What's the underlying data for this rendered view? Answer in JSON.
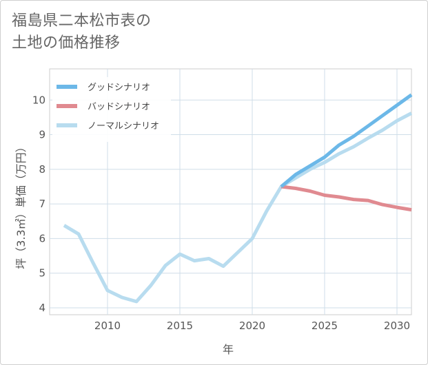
{
  "title": {
    "line1": "福島県二本松市表の",
    "line2": "土地の価格推移"
  },
  "chart_data": {
    "type": "line",
    "xlabel": "年",
    "ylabel": "坪（3.3㎡）単価（万円）",
    "xlim": [
      2006,
      2031
    ],
    "ylim": [
      3.8,
      10.9
    ],
    "xticks": [
      2010,
      2015,
      2020,
      2025,
      2030
    ],
    "yticks": [
      4,
      5,
      6,
      7,
      8,
      9,
      10
    ],
    "grid": true,
    "legend_position": "top-left",
    "series": [
      {
        "name": "グッドシナリオ",
        "color": "#6cb8e8",
        "x": [
          2022,
          2023,
          2024,
          2025,
          2026,
          2027,
          2028,
          2029,
          2030,
          2031
        ],
        "values": [
          7.5,
          7.85,
          8.1,
          8.35,
          8.7,
          8.95,
          9.25,
          9.55,
          9.85,
          10.15
        ]
      },
      {
        "name": "バッドシナリオ",
        "color": "#e08a90",
        "x": [
          2022,
          2023,
          2024,
          2025,
          2026,
          2027,
          2028,
          2029,
          2030,
          2031
        ],
        "values": [
          7.5,
          7.45,
          7.37,
          7.25,
          7.2,
          7.13,
          7.1,
          6.98,
          6.9,
          6.83
        ]
      },
      {
        "name": "ノーマルシナリオ",
        "color": "#b8dcef",
        "x": [
          2007,
          2008,
          2009,
          2010,
          2011,
          2012,
          2013,
          2014,
          2015,
          2016,
          2017,
          2018,
          2019,
          2020,
          2021,
          2022,
          2023,
          2024,
          2025,
          2026,
          2027,
          2028,
          2029,
          2030,
          2031
        ],
        "values": [
          6.38,
          6.13,
          5.3,
          4.5,
          4.3,
          4.18,
          4.65,
          5.22,
          5.55,
          5.36,
          5.42,
          5.2,
          5.6,
          6.0,
          6.8,
          7.5,
          7.75,
          8.0,
          8.2,
          8.45,
          8.65,
          8.9,
          9.13,
          9.4,
          9.62
        ]
      }
    ]
  }
}
